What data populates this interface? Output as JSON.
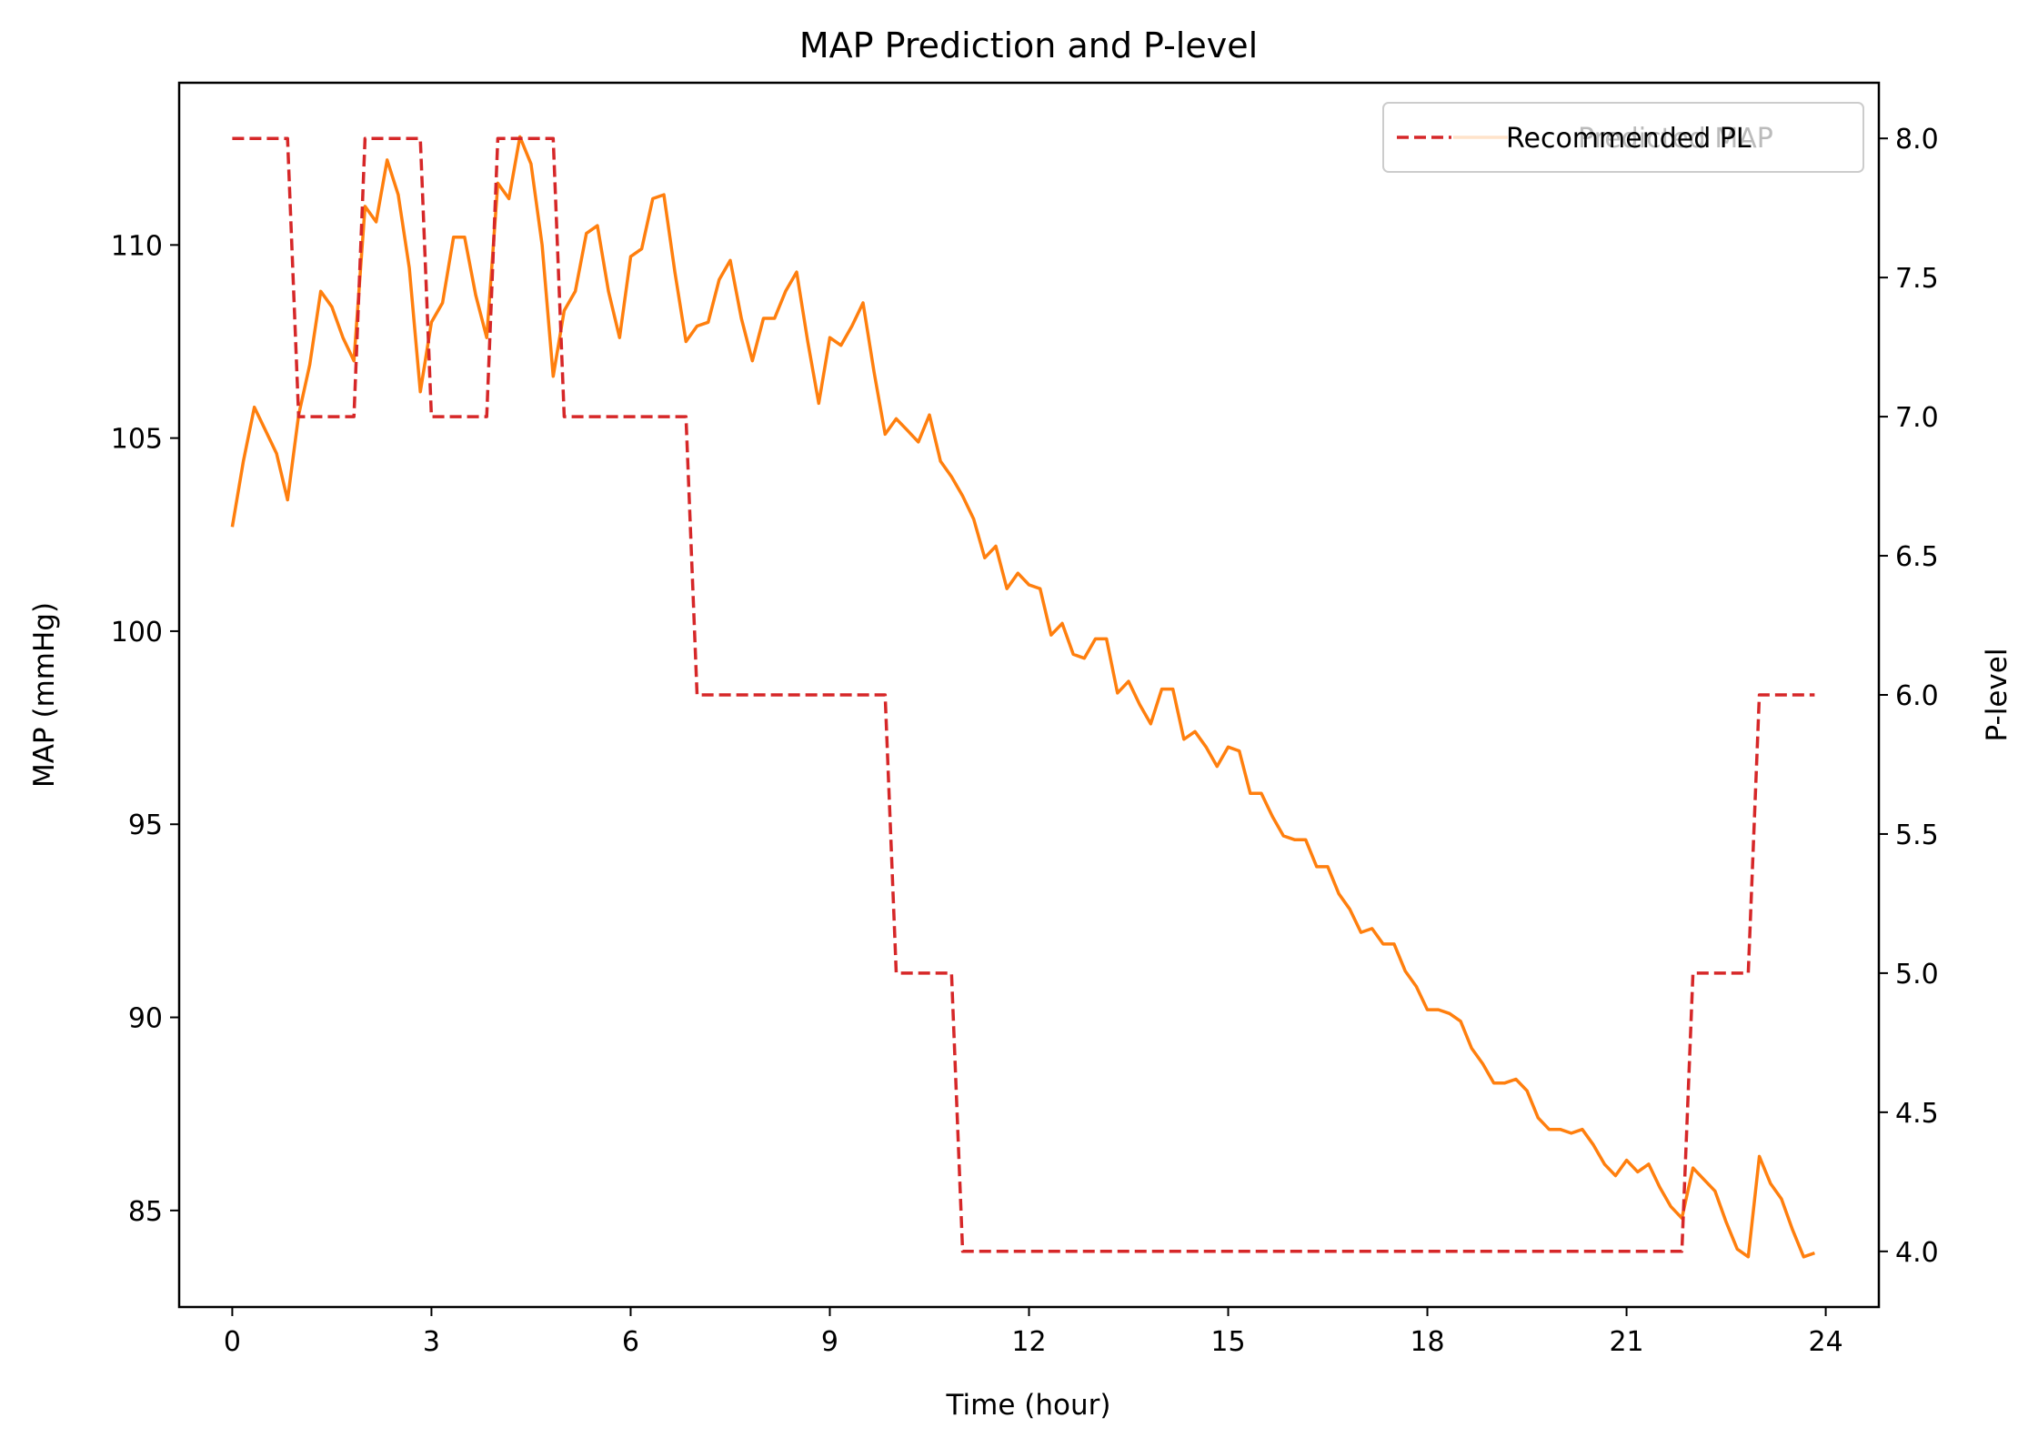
{
  "chart_data": {
    "type": "line",
    "title": "MAP Prediction and P-level",
    "xlabel": "Time (hour)",
    "ylabel_left": "MAP (mmHg)",
    "ylabel_right": "P-level",
    "xlim": [
      -0.8,
      24.8
    ],
    "ylim_left": [
      82.5,
      114.2
    ],
    "ylim_right": [
      3.8,
      8.2
    ],
    "x_ticks": [
      0,
      3,
      6,
      9,
      12,
      15,
      18,
      21,
      24
    ],
    "y_left_ticks": [
      85,
      90,
      95,
      100,
      105,
      110
    ],
    "y_right_ticks": [
      "4.0",
      "4.5",
      "5.0",
      "5.5",
      "6.0",
      "6.5",
      "7.0",
      "7.5",
      "8.0"
    ],
    "legend": {
      "location": "top-right",
      "entries": [
        "Predicted MAP",
        "Recommended PL"
      ],
      "visible_labels": [
        "Predicted MAP",
        "Recommended PL"
      ]
    },
    "series": [
      {
        "name": "Predicted MAP",
        "axis": "left",
        "color": "#ff7f0e",
        "style": "solid",
        "x": [
          0.0,
          0.167,
          0.333,
          0.5,
          0.667,
          0.833,
          1.0,
          1.167,
          1.333,
          1.5,
          1.667,
          1.833,
          2.0,
          2.167,
          2.333,
          2.5,
          2.667,
          2.833,
          3.0,
          3.167,
          3.333,
          3.5,
          3.667,
          3.833,
          4.0,
          4.167,
          4.333,
          4.5,
          4.667,
          4.833,
          5.0,
          5.167,
          5.333,
          5.5,
          5.667,
          5.833,
          6.0,
          6.167,
          6.333,
          6.5,
          6.667,
          6.833,
          7.0,
          7.167,
          7.333,
          7.5,
          7.667,
          7.833,
          8.0,
          8.167,
          8.333,
          8.5,
          8.667,
          8.833,
          9.0,
          9.167,
          9.333,
          9.5,
          9.667,
          9.833,
          10.0,
          10.167,
          10.333,
          10.5,
          10.667,
          10.833,
          11.0,
          11.167,
          11.333,
          11.5,
          11.667,
          11.833,
          12.0,
          12.167,
          12.333,
          12.5,
          12.667,
          12.833,
          13.0,
          13.167,
          13.333,
          13.5,
          13.667,
          13.833,
          14.0,
          14.167,
          14.333,
          14.5,
          14.667,
          14.833,
          15.0,
          15.167,
          15.333,
          15.5,
          15.667,
          15.833,
          16.0,
          16.167,
          16.333,
          16.5,
          16.667,
          16.833,
          17.0,
          17.167,
          17.333,
          17.5,
          17.667,
          17.833,
          18.0,
          18.167,
          18.333,
          18.5,
          18.667,
          18.833,
          19.0,
          19.167,
          19.333,
          19.5,
          19.667,
          19.833,
          20.0,
          20.167,
          20.333,
          20.5,
          20.667,
          20.833,
          21.0,
          21.167,
          21.333,
          21.5,
          21.667,
          21.833,
          22.0,
          22.167,
          22.333,
          22.5,
          22.667,
          22.833,
          23.0,
          23.167,
          23.333,
          23.5,
          23.667,
          23.833
        ],
        "values": [
          102.7,
          104.4,
          105.8,
          105.2,
          104.6,
          103.4,
          105.6,
          106.9,
          108.8,
          108.4,
          107.6,
          107.0,
          111.0,
          110.6,
          112.2,
          111.3,
          109.4,
          106.2,
          108.0,
          108.5,
          110.2,
          110.2,
          108.7,
          107.6,
          111.6,
          111.2,
          112.8,
          112.1,
          110.0,
          106.6,
          108.3,
          108.8,
          110.3,
          110.5,
          108.8,
          107.6,
          109.7,
          109.9,
          111.2,
          111.3,
          109.3,
          107.5,
          107.9,
          108.0,
          109.1,
          109.6,
          108.1,
          107.0,
          108.1,
          108.1,
          108.8,
          109.3,
          107.5,
          105.9,
          107.6,
          107.4,
          107.9,
          108.5,
          106.7,
          105.1,
          105.5,
          105.2,
          104.9,
          105.6,
          104.4,
          104.0,
          103.5,
          102.9,
          101.9,
          102.2,
          101.1,
          101.5,
          101.2,
          101.1,
          99.9,
          100.2,
          99.4,
          99.3,
          99.8,
          99.8,
          98.4,
          98.7,
          98.1,
          97.6,
          98.5,
          98.5,
          97.2,
          97.4,
          97.0,
          96.5,
          97.0,
          96.9,
          95.8,
          95.8,
          95.2,
          94.7,
          94.6,
          94.6,
          93.9,
          93.9,
          93.2,
          92.8,
          92.2,
          92.3,
          91.9,
          91.9,
          91.2,
          90.8,
          90.2,
          90.2,
          90.1,
          89.9,
          89.2,
          88.8,
          88.3,
          88.3,
          88.4,
          88.1,
          87.4,
          87.1,
          87.1,
          87.0,
          87.1,
          86.7,
          86.2,
          85.9,
          86.3,
          86.0,
          86.2,
          85.6,
          85.1,
          84.8,
          86.1,
          85.8,
          85.5,
          84.7,
          84.0,
          83.8,
          86.4,
          85.7,
          85.3,
          84.5,
          83.8,
          83.9
        ]
      },
      {
        "name": "Recommended PL",
        "axis": "right",
        "color": "#d62728",
        "style": "dashed",
        "x": [
          0.0,
          0.833,
          1.0,
          1.833,
          2.0,
          2.833,
          3.0,
          3.833,
          4.0,
          4.833,
          5.0,
          6.833,
          7.0,
          9.833,
          10.0,
          10.833,
          11.0,
          21.833,
          22.0,
          22.833,
          23.0,
          23.833
        ],
        "values": [
          8,
          8,
          7,
          7,
          8,
          8,
          7,
          7,
          8,
          8,
          7,
          7,
          6,
          6,
          5,
          5,
          4,
          4,
          5,
          5,
          6,
          6
        ]
      }
    ]
  }
}
